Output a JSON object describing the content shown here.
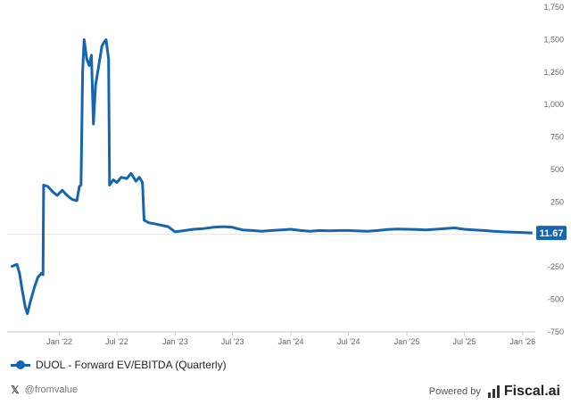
{
  "chart_data": {
    "type": "line",
    "series": [
      {
        "name": "DUOL - Forward EV/EBITDA (Quarterly)",
        "color": "#1565b0",
        "points": [
          [
            "2021-08-01",
            -250
          ],
          [
            "2021-08-10",
            -240
          ],
          [
            "2021-08-20",
            -230
          ],
          [
            "2021-08-28",
            -300
          ],
          [
            "2021-09-05",
            -420
          ],
          [
            "2021-09-15",
            -560
          ],
          [
            "2021-09-22",
            -610
          ],
          [
            "2021-10-01",
            -520
          ],
          [
            "2021-10-15",
            -400
          ],
          [
            "2021-10-25",
            -330
          ],
          [
            "2021-11-05",
            -300
          ],
          [
            "2021-11-10",
            -310
          ],
          [
            "2021-11-12",
            380
          ],
          [
            "2021-11-25",
            370
          ],
          [
            "2021-12-10",
            330
          ],
          [
            "2021-12-25",
            300
          ],
          [
            "2022-01-10",
            340
          ],
          [
            "2022-01-25",
            300
          ],
          [
            "2022-02-10",
            270
          ],
          [
            "2022-02-25",
            260
          ],
          [
            "2022-03-05",
            370
          ],
          [
            "2022-03-10",
            380
          ],
          [
            "2022-03-15",
            1250
          ],
          [
            "2022-03-20",
            1500
          ],
          [
            "2022-03-28",
            1350
          ],
          [
            "2022-04-05",
            1300
          ],
          [
            "2022-04-12",
            1380
          ],
          [
            "2022-04-18",
            850
          ],
          [
            "2022-04-25",
            1150
          ],
          [
            "2022-05-05",
            1300
          ],
          [
            "2022-05-15",
            1450
          ],
          [
            "2022-05-22",
            1480
          ],
          [
            "2022-05-28",
            1500
          ],
          [
            "2022-06-05",
            1350
          ],
          [
            "2022-06-08",
            380
          ],
          [
            "2022-06-20",
            420
          ],
          [
            "2022-07-01",
            400
          ],
          [
            "2022-07-15",
            440
          ],
          [
            "2022-08-01",
            430
          ],
          [
            "2022-08-15",
            470
          ],
          [
            "2022-08-30",
            410
          ],
          [
            "2022-09-10",
            440
          ],
          [
            "2022-09-20",
            400
          ],
          [
            "2022-09-25",
            110
          ],
          [
            "2022-10-10",
            90
          ],
          [
            "2022-11-01",
            80
          ],
          [
            "2022-11-20",
            70
          ],
          [
            "2022-12-10",
            60
          ],
          [
            "2023-01-01",
            20
          ],
          [
            "2023-02-01",
            30
          ],
          [
            "2023-03-01",
            40
          ],
          [
            "2023-04-01",
            45
          ],
          [
            "2023-05-01",
            55
          ],
          [
            "2023-06-01",
            60
          ],
          [
            "2023-07-01",
            55
          ],
          [
            "2023-07-15",
            45
          ],
          [
            "2023-08-01",
            35
          ],
          [
            "2023-09-01",
            30
          ],
          [
            "2023-10-01",
            25
          ],
          [
            "2023-11-01",
            30
          ],
          [
            "2023-12-01",
            35
          ],
          [
            "2024-01-01",
            40
          ],
          [
            "2024-02-01",
            30
          ],
          [
            "2024-03-01",
            25
          ],
          [
            "2024-04-01",
            30
          ],
          [
            "2024-05-01",
            28
          ],
          [
            "2024-06-01",
            30
          ],
          [
            "2024-07-01",
            30
          ],
          [
            "2024-08-01",
            27
          ],
          [
            "2024-09-01",
            25
          ],
          [
            "2024-10-01",
            30
          ],
          [
            "2024-11-01",
            38
          ],
          [
            "2024-12-01",
            42
          ],
          [
            "2025-01-01",
            40
          ],
          [
            "2025-02-01",
            38
          ],
          [
            "2025-03-01",
            35
          ],
          [
            "2025-04-01",
            40
          ],
          [
            "2025-05-01",
            45
          ],
          [
            "2025-06-01",
            50
          ],
          [
            "2025-07-01",
            40
          ],
          [
            "2025-08-01",
            35
          ],
          [
            "2025-09-01",
            30
          ],
          [
            "2025-10-01",
            25
          ],
          [
            "2025-11-01",
            20
          ],
          [
            "2025-12-01",
            18
          ],
          [
            "2026-01-01",
            15
          ],
          [
            "2026-02-01",
            11.67
          ]
        ]
      }
    ],
    "x_ticks": [
      {
        "date": "2022-01-01",
        "label": "Jan '22"
      },
      {
        "date": "2022-07-01",
        "label": "Jul '22"
      },
      {
        "date": "2023-01-01",
        "label": "Jan '23"
      },
      {
        "date": "2023-07-01",
        "label": "Jul '23"
      },
      {
        "date": "2024-01-01",
        "label": "Jan '24"
      },
      {
        "date": "2024-07-01",
        "label": "Jul '24"
      },
      {
        "date": "2025-01-01",
        "label": "Jan '25"
      },
      {
        "date": "2025-07-01",
        "label": "Jul '25"
      },
      {
        "date": "2026-01-01",
        "label": "Jan '26"
      }
    ],
    "y_ticks": [
      {
        "value": 1750,
        "label": "1,750"
      },
      {
        "value": 1500,
        "label": "1,500"
      },
      {
        "value": 1250,
        "label": "1,250"
      },
      {
        "value": 1000,
        "label": "1,000"
      },
      {
        "value": 750,
        "label": "750"
      },
      {
        "value": 500,
        "label": "500"
      },
      {
        "value": 250,
        "label": "250"
      },
      {
        "value": -250,
        "label": "-250"
      },
      {
        "value": -500,
        "label": "-500"
      },
      {
        "value": -750,
        "label": "-750"
      }
    ],
    "xlim": [
      "2021-07-20",
      "2026-02-10"
    ],
    "ylim": [
      -750,
      1750
    ],
    "grid": false,
    "last_value_label": "11.67",
    "legend_position": "bottom-left"
  },
  "legend": {
    "label": "DUOL - Forward EV/EBITDA (Quarterly)"
  },
  "footer": {
    "handle_icon": "x-icon",
    "handle": "@fromvalue",
    "powered_by": "Powered by",
    "brand_icon": "bar-chart-icon",
    "brand": "Fiscal.ai"
  }
}
